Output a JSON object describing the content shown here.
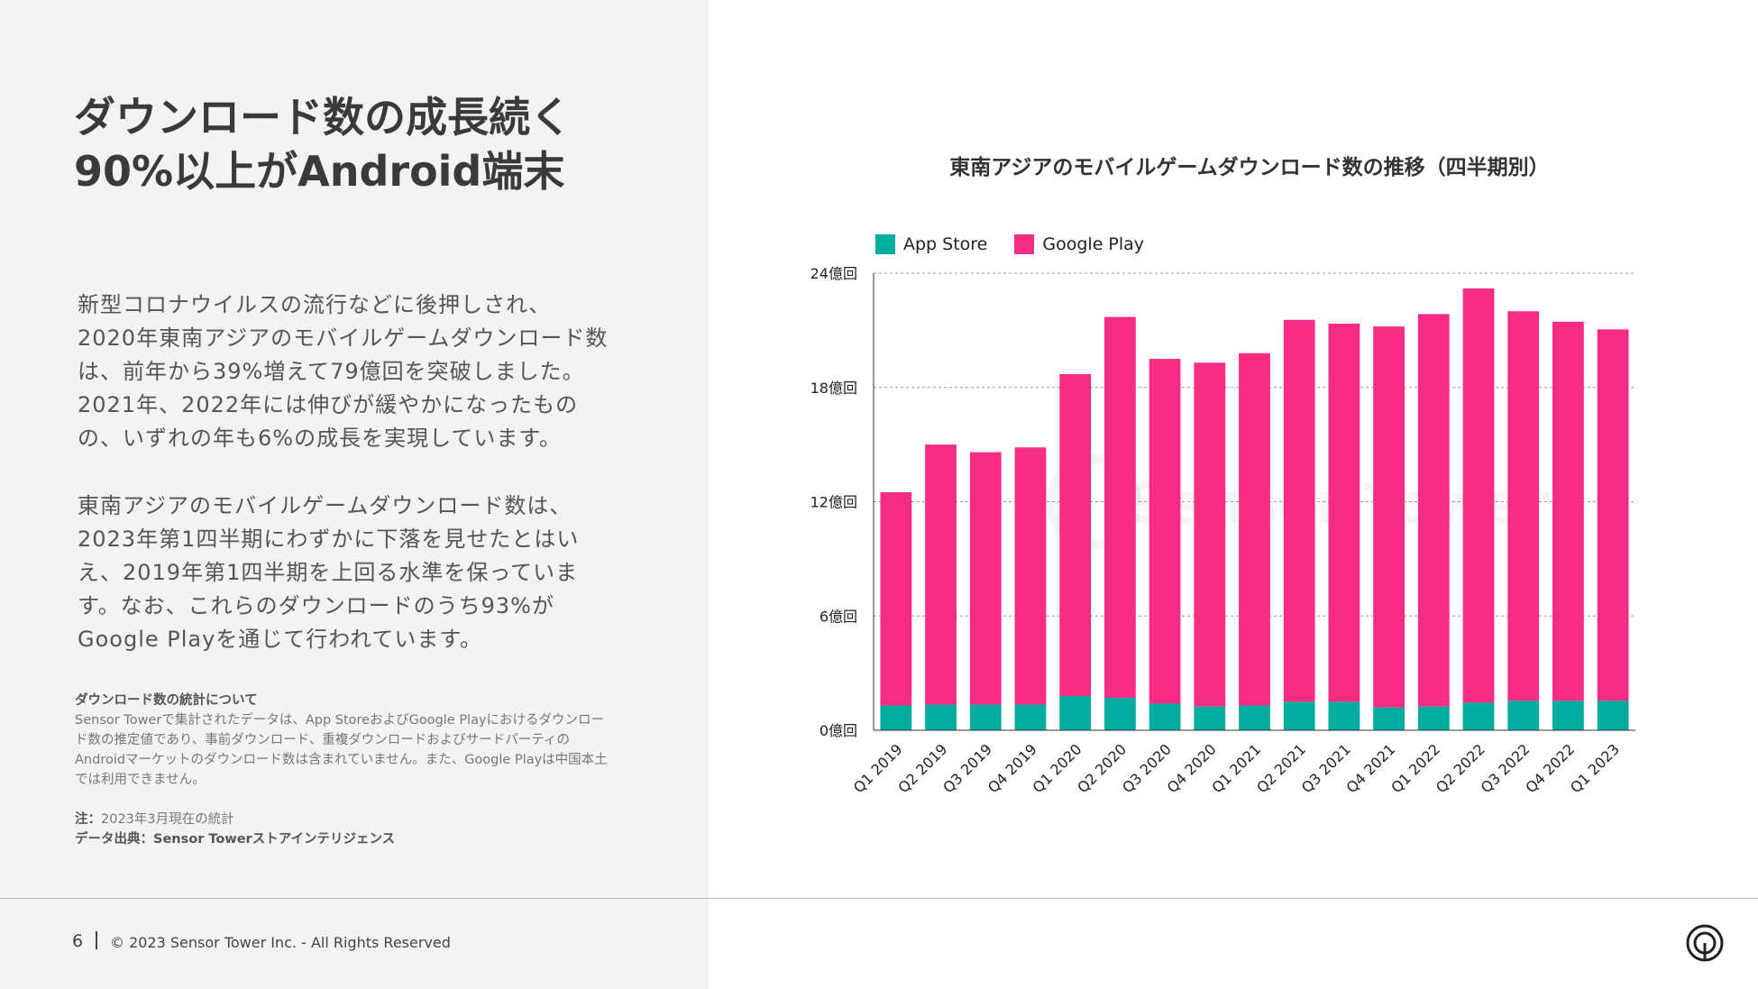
{
  "left": {
    "title": "ダウンロード数の成長続く\n90%以上がAndroid端末",
    "paragraph1": "新型コロナウイルスの流行などに後押しされ、2020年東南アジアのモバイルゲームダウンロード数は、前年から39%増えて79億回を突破しました。2021年、2022年には伸びが緩やかになったものの、いずれの年も6%の成長を実現しています。",
    "paragraph2": "東南アジアのモバイルゲームダウンロード数は、2023年第1四半期にわずかに下落を見せたとはいえ、2019年第1四半期を上回る水準を保っています。なお、これらのダウンロードのうち93%がGoogle Playを通じて行われています。",
    "notes_heading": "ダウンロード数の統計について",
    "notes_body": "Sensor Towerで集計されたデータは、App StoreおよびGoogle Playにおけるダウンロード数の推定値であり、事前ダウンロード、重複ダウンロードおよびサードパーティのAndroidマーケットのダウンロード数は含まれていません。また、Google Playは中国本土では利用できません。",
    "note_label": "注：",
    "note_text": "2023年3月現在の統計",
    "source": "データ出典：Sensor Towerストアインテリジェンス"
  },
  "footer": {
    "page_number": "6",
    "copyright": "© 2023 Sensor Tower Inc. - All Rights Reserved",
    "logo_icon": "sensor-tower-logo-icon"
  },
  "watermark": "Sensor Tower",
  "chart_data": {
    "type": "bar",
    "stacked": true,
    "title": "東南アジアのモバイルゲームダウンロード数の推移（四半期別）",
    "categories": [
      "Q1 2019",
      "Q2 2019",
      "Q3 2019",
      "Q4 2019",
      "Q1 2020",
      "Q2 2020",
      "Q3 2020",
      "Q4 2020",
      "Q1 2021",
      "Q2 2021",
      "Q3 2021",
      "Q4 2021",
      "Q1 2022",
      "Q2 2022",
      "Q3 2022",
      "Q4 2022",
      "Q1 2023"
    ],
    "series": [
      {
        "name": "App Store",
        "color": "#00ac9f",
        "values": [
          1.3,
          1.35,
          1.35,
          1.35,
          1.8,
          1.7,
          1.4,
          1.25,
          1.3,
          1.5,
          1.5,
          1.2,
          1.25,
          1.45,
          1.55,
          1.55,
          1.55
        ]
      },
      {
        "name": "Google Play",
        "color": "#f72c84",
        "values": [
          11.2,
          13.65,
          13.25,
          13.5,
          16.9,
          20.0,
          18.1,
          18.05,
          18.5,
          20.05,
          19.85,
          20.0,
          20.6,
          21.75,
          20.45,
          19.9,
          19.5
        ]
      }
    ],
    "yticks": [
      "0億回",
      "6億回",
      "12億回",
      "18億回",
      "24億回"
    ],
    "ylim": [
      0,
      24
    ],
    "grid": true,
    "legend": "top-left"
  }
}
